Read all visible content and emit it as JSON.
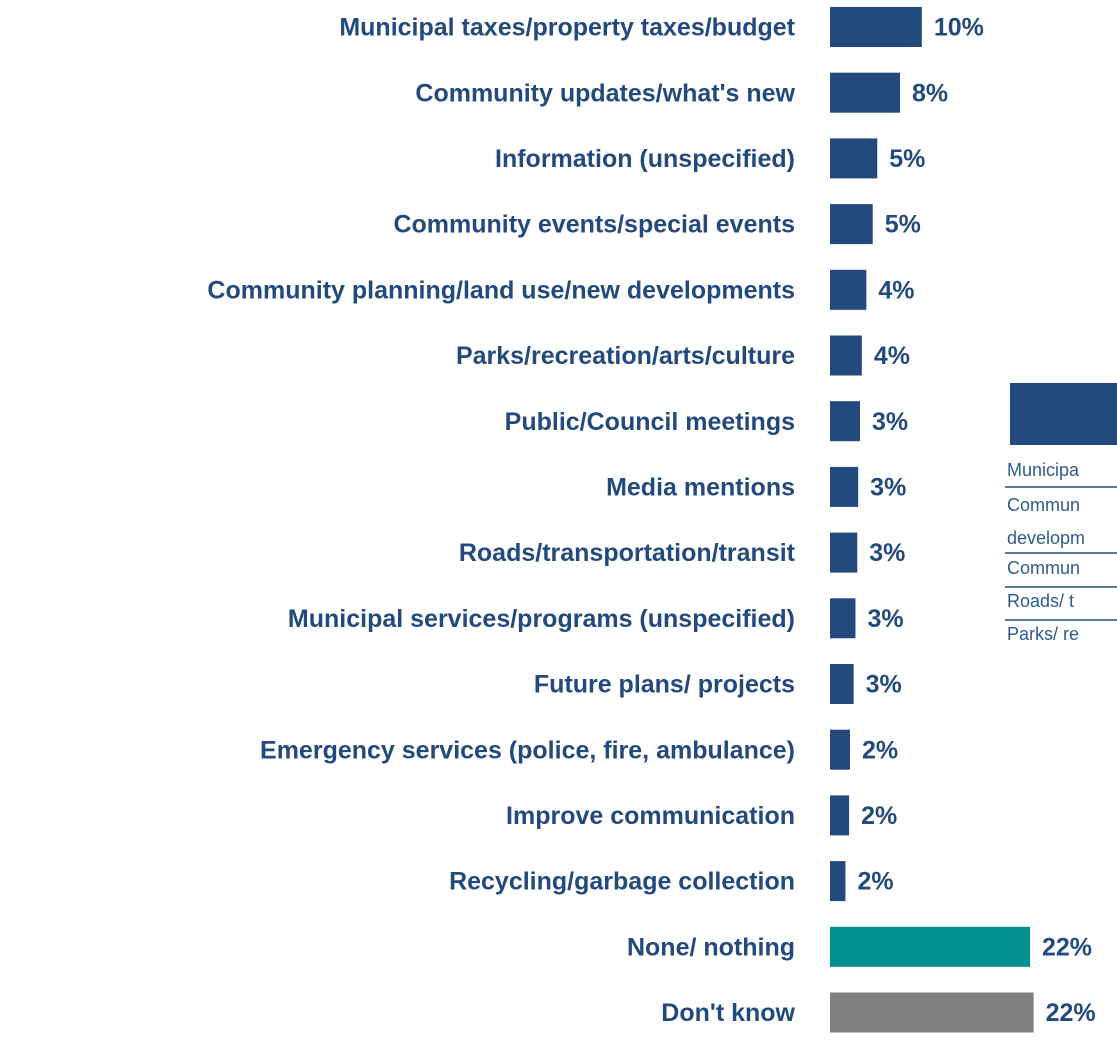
{
  "chart_data": {
    "type": "bar",
    "orientation": "horizontal",
    "categories": [
      "Municipal taxes/property taxes/budget",
      "Community updates/what's new",
      "Information (unspecified)",
      "Community events/special events",
      "Community planning/land use/new developments",
      "Parks/recreation/arts/culture",
      "Public/Council meetings",
      "Media mentions",
      "Roads/transportation/transit",
      "Municipal services/programs (unspecified)",
      "Future plans/ projects",
      "Emergency services (police, fire, ambulance)",
      "Improve communication",
      "Recycling/garbage collection",
      "None/ nothing",
      "Don't know"
    ],
    "values": [
      10.1,
      7.7,
      5.2,
      4.7,
      4.0,
      3.5,
      3.3,
      3.1,
      3.0,
      2.8,
      2.6,
      2.2,
      2.1,
      1.7,
      22.0,
      22.4
    ],
    "value_labels": [
      "10%",
      "8%",
      "5%",
      "5%",
      "4%",
      "4%",
      "3%",
      "3%",
      "3%",
      "3%",
      "3%",
      "2%",
      "2%",
      "2%",
      "22%",
      "22%"
    ],
    "colors": [
      "#234a7c",
      "#234a7c",
      "#234a7c",
      "#234a7c",
      "#234a7c",
      "#234a7c",
      "#234a7c",
      "#234a7c",
      "#234a7c",
      "#234a7c",
      "#234a7c",
      "#234a7c",
      "#234a7c",
      "#234a7c",
      "#00908f",
      "#808080"
    ],
    "xlim": [
      0,
      22
    ]
  },
  "table": {
    "rows": [
      "Municipa",
      "Commun",
      "developm",
      "Commun",
      "Roads/ t",
      "Parks/ re"
    ]
  }
}
